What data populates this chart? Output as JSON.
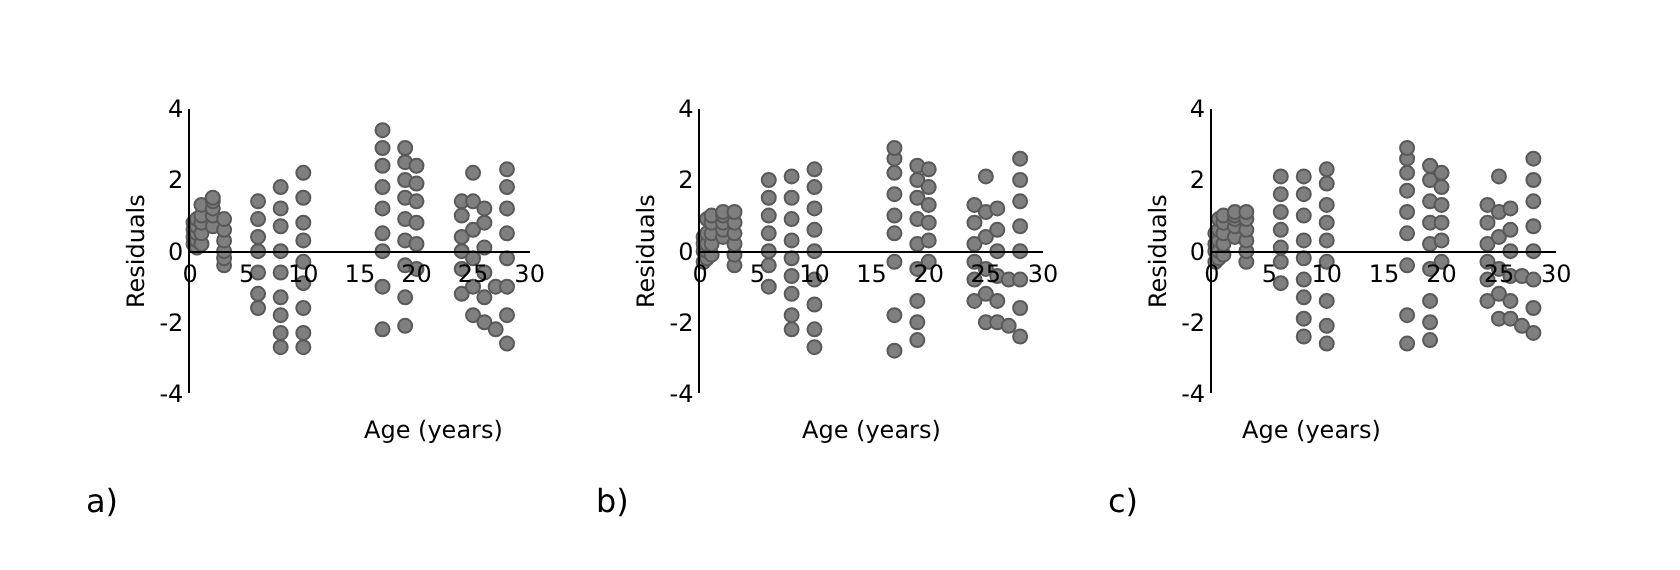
{
  "chart_data": [
    {
      "type": "scatter",
      "xlabel": "Age (years)",
      "ylabel": "Residuals",
      "xlim": [
        0,
        30
      ],
      "xticks": [
        0,
        5,
        10,
        15,
        20,
        25,
        30
      ],
      "ylim": [
        -4,
        4
      ],
      "yticks": [
        -4,
        -2,
        0,
        2,
        4
      ],
      "color": "#7f7f7f",
      "marker": "circle",
      "annotations": [
        "a)"
      ],
      "x": [
        0.3,
        0.3,
        0.3,
        0.3,
        0.6,
        0.6,
        0.6,
        0.6,
        0.6,
        1,
        1,
        1,
        1,
        1,
        2,
        2,
        2,
        2,
        2,
        3,
        3,
        3,
        3,
        3,
        3,
        6,
        6,
        6,
        6,
        6,
        6,
        6,
        8,
        8,
        8,
        8,
        8,
        8,
        8,
        8,
        8,
        10,
        10,
        10,
        10,
        10,
        10,
        10,
        10,
        10,
        17,
        17,
        17,
        17,
        17,
        17,
        17,
        17,
        17,
        19,
        19,
        19,
        19,
        19,
        19,
        19,
        19,
        19,
        20,
        20,
        20,
        20,
        20,
        20,
        24,
        24,
        24,
        24,
        24,
        24,
        25,
        25,
        25,
        25,
        25,
        25,
        26,
        26,
        26,
        26,
        26,
        26,
        27,
        27,
        28,
        28,
        28,
        28,
        28,
        28,
        28,
        28
      ],
      "values": [
        0.2,
        0.4,
        0.6,
        0.8,
        0.1,
        0.3,
        0.5,
        0.7,
        0.9,
        0.2,
        0.5,
        0.8,
        1.0,
        1.3,
        0.7,
        1.0,
        1.2,
        1.4,
        1.5,
        -0.4,
        -0.2,
        0,
        0.3,
        0.6,
        0.9,
        -1.6,
        -1.2,
        -0.6,
        0,
        0.4,
        0.9,
        1.4,
        -2.7,
        -2.3,
        -1.8,
        -1.3,
        -0.6,
        0,
        0.7,
        1.2,
        1.8,
        -2.7,
        -2.3,
        -1.6,
        -0.9,
        -0.3,
        0.3,
        0.8,
        1.5,
        2.2,
        -2.2,
        -1.0,
        0,
        0.5,
        1.2,
        1.8,
        2.4,
        2.9,
        3.4,
        -2.1,
        -1.3,
        -0.4,
        0.3,
        0.9,
        1.5,
        2.0,
        2.5,
        2.9,
        -0.5,
        0.2,
        0.8,
        1.4,
        1.9,
        2.4,
        -1.2,
        -0.5,
        0,
        0.4,
        1.0,
        1.4,
        -1.8,
        -1.0,
        -0.2,
        0.6,
        1.4,
        2.2,
        -2.0,
        -1.3,
        -0.6,
        0.1,
        0.8,
        1.2,
        -2.2,
        -1.0,
        -2.6,
        -1.8,
        -1.0,
        -0.2,
        0.5,
        1.2,
        1.8,
        2.3
      ]
    },
    {
      "type": "scatter",
      "xlabel": "Age (years)",
      "ylabel": "Residuals",
      "xlim": [
        0,
        30
      ],
      "xticks": [
        0,
        5,
        10,
        15,
        20,
        25,
        30
      ],
      "ylim": [
        -4,
        4
      ],
      "yticks": [
        -4,
        -2,
        0,
        2,
        4
      ],
      "color": "#7f7f7f",
      "marker": "circle",
      "annotations": [
        "b)"
      ],
      "x": [
        0.3,
        0.3,
        0.3,
        0.3,
        0.6,
        0.6,
        0.6,
        0.6,
        0.6,
        1,
        1,
        1,
        1,
        1,
        2,
        2,
        2,
        2,
        2,
        3,
        3,
        3,
        3,
        3,
        3,
        6,
        6,
        6,
        6,
        6,
        6,
        6,
        8,
        8,
        8,
        8,
        8,
        8,
        8,
        8,
        8,
        10,
        10,
        10,
        10,
        10,
        10,
        10,
        10,
        10,
        17,
        17,
        17,
        17,
        17,
        17,
        17,
        17,
        17,
        19,
        19,
        19,
        19,
        19,
        19,
        19,
        19,
        19,
        20,
        20,
        20,
        20,
        20,
        20,
        24,
        24,
        24,
        24,
        24,
        24,
        25,
        25,
        25,
        25,
        25,
        25,
        26,
        26,
        26,
        26,
        26,
        26,
        27,
        27,
        28,
        28,
        28,
        28,
        28,
        28,
        28,
        28
      ],
      "values": [
        -0.3,
        0,
        0.2,
        0.4,
        -0.2,
        0,
        0.2,
        0.5,
        0.9,
        -0.1,
        0.2,
        0.5,
        0.8,
        1.0,
        0.4,
        0.6,
        0.8,
        1.0,
        1.1,
        -0.4,
        -0.1,
        0.2,
        0.5,
        0.8,
        1.1,
        -1.0,
        -0.4,
        0,
        0.5,
        1.0,
        1.5,
        2.0,
        -2.2,
        -1.8,
        -1.2,
        -0.7,
        -0.2,
        0.3,
        0.9,
        1.5,
        2.1,
        -2.7,
        -2.2,
        -1.5,
        -0.8,
        0,
        0.6,
        1.2,
        1.8,
        2.3,
        -2.8,
        -1.8,
        -0.3,
        0.5,
        1.0,
        1.6,
        2.2,
        2.6,
        2.9,
        -2.5,
        -2.0,
        -1.4,
        -0.5,
        0.2,
        0.9,
        1.5,
        2.0,
        2.4,
        -0.3,
        0.3,
        0.8,
        1.3,
        1.8,
        2.3,
        -1.4,
        -0.8,
        -0.3,
        0.2,
        0.8,
        1.3,
        -2.0,
        -1.2,
        -0.5,
        0.4,
        1.1,
        2.1,
        -2.0,
        -1.4,
        -0.7,
        0,
        0.6,
        1.2,
        -2.1,
        -0.8,
        -2.4,
        -1.6,
        -0.8,
        0,
        0.7,
        1.4,
        2.0,
        2.6
      ]
    },
    {
      "type": "scatter",
      "xlabel": "Age (years)",
      "ylabel": "Residuals",
      "xlim": [
        0,
        30
      ],
      "xticks": [
        0,
        5,
        10,
        15,
        20,
        25,
        30
      ],
      "ylim": [
        -4,
        4
      ],
      "yticks": [
        -4,
        -2,
        0,
        2,
        4
      ],
      "color": "#7f7f7f",
      "marker": "circle",
      "annotations": [
        "c)"
      ],
      "x": [
        0.3,
        0.3,
        0.3,
        0.3,
        0.6,
        0.6,
        0.6,
        0.6,
        0.6,
        1,
        1,
        1,
        1,
        1,
        2,
        2,
        2,
        2,
        2,
        3,
        3,
        3,
        3,
        3,
        3,
        6,
        6,
        6,
        6,
        6,
        6,
        6,
        8,
        8,
        8,
        8,
        8,
        8,
        8,
        8,
        8,
        10,
        10,
        10,
        10,
        10,
        10,
        10,
        10,
        10,
        17,
        17,
        17,
        17,
        17,
        17,
        17,
        17,
        17,
        19,
        19,
        19,
        19,
        19,
        19,
        19,
        19,
        19,
        20,
        20,
        20,
        20,
        20,
        20,
        24,
        24,
        24,
        24,
        24,
        24,
        25,
        25,
        25,
        25,
        25,
        25,
        26,
        26,
        26,
        26,
        26,
        26,
        27,
        27,
        28,
        28,
        28,
        28,
        28,
        28,
        28,
        28
      ],
      "values": [
        -0.3,
        0,
        0.2,
        0.5,
        -0.2,
        0,
        0.3,
        0.6,
        0.9,
        -0.1,
        0.2,
        0.5,
        0.8,
        1.0,
        0.4,
        0.7,
        0.9,
        1.0,
        1.1,
        -0.3,
        0,
        0.3,
        0.6,
        0.9,
        1.1,
        -0.9,
        -0.3,
        0.1,
        0.6,
        1.1,
        1.6,
        2.1,
        -2.4,
        -1.9,
        -1.3,
        -0.8,
        -0.2,
        0.3,
        1.0,
        1.6,
        2.1,
        -2.6,
        -2.1,
        -1.4,
        -0.3,
        0.3,
        0.8,
        1.3,
        1.9,
        2.3,
        -2.6,
        -1.8,
        -0.4,
        0.5,
        1.1,
        1.7,
        2.2,
        2.6,
        2.9,
        -2.5,
        -2.0,
        -1.4,
        -0.5,
        0.2,
        0.8,
        1.4,
        2.0,
        2.4,
        -0.3,
        0.3,
        0.8,
        1.3,
        1.8,
        2.2,
        -1.4,
        -0.8,
        -0.3,
        0.2,
        0.8,
        1.3,
        -1.9,
        -1.2,
        -0.5,
        0.4,
        1.1,
        2.1,
        -1.9,
        -1.4,
        -0.7,
        0,
        0.6,
        1.2,
        -2.1,
        -0.7,
        -2.3,
        -1.6,
        -0.8,
        0,
        0.7,
        1.4,
        2.0,
        2.6
      ]
    }
  ]
}
